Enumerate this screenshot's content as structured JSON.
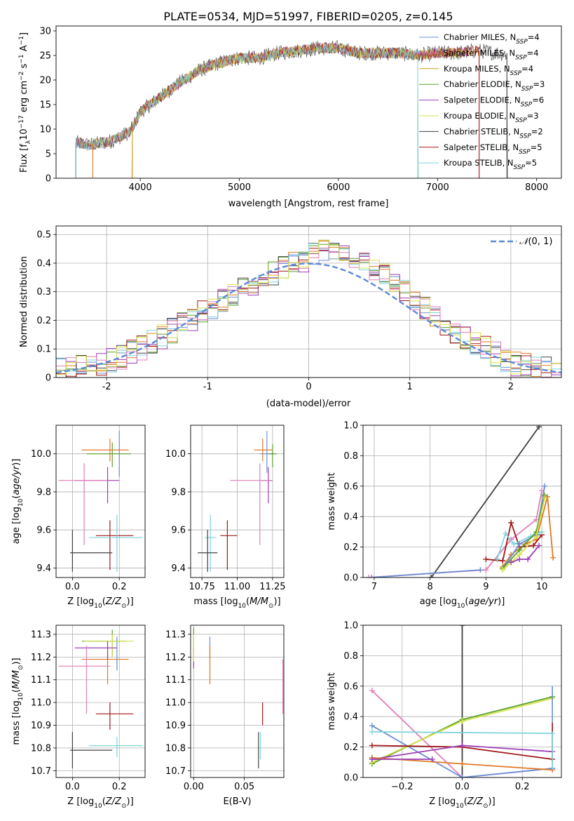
{
  "title": "PLATE=0534, MJD=51997, FIBERID=0205, z=0.145",
  "colors": {
    "c1": "#6b8fd6",
    "c2": "#e07a28",
    "c3": "#d4a017",
    "c4": "#5aa02c",
    "c5": "#9b3fb5",
    "c6": "#d7e04a",
    "c7": "#404040",
    "c8": "#a01818",
    "c9": "#7fd4de",
    "c10": "#e07fb8"
  },
  "chart_data": [
    {
      "id": "spectrum",
      "type": "line",
      "xlabel": "wavelength [Angstrom, rest frame]",
      "ylabel": "Flux [f_λ10^-17 erg cm^-2 s^-1 A^-1]",
      "xlim": [
        3150,
        8250
      ],
      "ylim": [
        0,
        31
      ],
      "xticks": [
        4000,
        5000,
        6000,
        7000,
        8000
      ],
      "yticks": [
        0,
        5,
        10,
        15,
        20,
        25,
        30
      ],
      "grid": false,
      "legend_position": "top-right",
      "legend": [
        {
          "name": "Chabrier MILES, N_SSP=4",
          "color": "c1"
        },
        {
          "name": "Salpeter MILES, N_SSP=4",
          "color": "c10"
        },
        {
          "name": "Kroupa MILES, N_SSP=4",
          "color": "c3"
        },
        {
          "name": "Chabrier ELODIE, N_SSP=3",
          "color": "c4"
        },
        {
          "name": "Salpeter ELODIE, N_SSP=6",
          "color": "c5"
        },
        {
          "name": "Kroupa ELODIE, N_SSP=3",
          "color": "c6"
        },
        {
          "name": "Chabrier STELIB, N_SSP=2",
          "color": "c7"
        },
        {
          "name": "Salpeter STELIB, N_SSP=5",
          "color": "c8"
        },
        {
          "name": "Kroupa STELIB, N_SSP=5",
          "color": "c9"
        }
      ],
      "continuum": {
        "x": [
          3350,
          3500,
          3700,
          3900,
          4000,
          4200,
          4400,
          4600,
          4800,
          5000,
          5200,
          5400,
          5600,
          5800,
          6000,
          6200,
          6400,
          6600,
          6800,
          7000,
          7200,
          7400,
          7600,
          7800
        ],
        "y": [
          7.2,
          6.8,
          7.5,
          9.5,
          13.5,
          16.5,
          19.5,
          22.0,
          23.5,
          24.5,
          24.5,
          25.5,
          26.0,
          26.5,
          26.5,
          25.5,
          25.5,
          25.5,
          25.0,
          25.5,
          25.5,
          26.0,
          25.5,
          25.0
        ]
      },
      "model_ranges": [
        {
          "color": "c2",
          "x": [
            3520,
            7420
          ]
        },
        {
          "color": "c3",
          "x": [
            3920,
            6800
          ]
        },
        {
          "color": "c8",
          "x": [
            3350,
            7420
          ]
        },
        {
          "color": "c7",
          "x": [
            3350,
            7700
          ]
        },
        {
          "color": "c9",
          "x": [
            3350,
            6800
          ]
        }
      ]
    },
    {
      "id": "residual-histogram",
      "type": "histogram",
      "xlabel": "(data-model)/error",
      "ylabel": "Normed distribution",
      "xlim": [
        -2.5,
        2.5
      ],
      "ylim": [
        0,
        0.53
      ],
      "xticks": [
        -2,
        -1,
        0,
        1,
        2
      ],
      "yticks": [
        0.0,
        0.1,
        0.2,
        0.3,
        0.4,
        0.5
      ],
      "grid": true,
      "legend_position": "top-right",
      "legend": [
        {
          "name": "N(0,1)",
          "color": "#5b8ad6",
          "style": "dashed"
        }
      ],
      "bin_width": 0.1,
      "mean_shape": {
        "x": [
          -2.5,
          -2.0,
          -1.5,
          -1.0,
          -0.5,
          0.0,
          0.2,
          0.5,
          1.0,
          1.5,
          2.0,
          2.5
        ],
        "y": [
          0.02,
          0.05,
          0.13,
          0.24,
          0.34,
          0.42,
          0.45,
          0.42,
          0.29,
          0.15,
          0.05,
          0.02
        ]
      },
      "series_colors": [
        "c1",
        "c2",
        "c4",
        "c5",
        "c7",
        "c8",
        "c9",
        "c10",
        "c6"
      ]
    },
    {
      "id": "age-vs-Z",
      "type": "errorbar",
      "xlabel": "Z [log10(Z/Z⊙)]",
      "ylabel": "age [log10(age/yr)]",
      "xlim": [
        -0.07,
        0.31
      ],
      "ylim": [
        9.35,
        10.15
      ],
      "xticks": [
        0.0,
        0.2
      ],
      "xticklabels": [
        "0.0",
        "0.2"
      ],
      "yticks": [
        9.4,
        9.6,
        9.8,
        10.0
      ],
      "yticklabels": [
        "9.4",
        "9.6",
        "9.8",
        "10.0"
      ],
      "grid": true,
      "points": [
        {
          "color": "c1",
          "x": 0.2,
          "xerr": 0.0,
          "y": 10.0,
          "ylo": 9.88,
          "yhi": 10.12
        },
        {
          "color": "c2",
          "x": 0.16,
          "xlo": 0.04,
          "xhi": 0.24,
          "y": 10.02,
          "ylo": 9.96,
          "yhi": 10.08
        },
        {
          "color": "c4",
          "x": 0.17,
          "xlo": 0.06,
          "xhi": 0.25,
          "y": 10.0,
          "ylo": 9.93,
          "yhi": 10.06
        },
        {
          "color": "c5",
          "x": 0.15,
          "xlo": 0.01,
          "xhi": 0.2,
          "y": 9.86,
          "ylo": 9.74,
          "yhi": 9.93
        },
        {
          "color": "c10",
          "x": 0.05,
          "xlo": -0.06,
          "xhi": 0.15,
          "y": 9.86,
          "ylo": 9.52,
          "yhi": 9.95
        },
        {
          "color": "c8",
          "x": 0.16,
          "xlo": 0.1,
          "xhi": 0.26,
          "y": 9.57,
          "ylo": 9.39,
          "yhi": 9.65
        },
        {
          "color": "c9",
          "x": 0.19,
          "xlo": 0.07,
          "xhi": 0.3,
          "y": 9.56,
          "ylo": 9.38,
          "yhi": 9.68
        },
        {
          "color": "c7",
          "x": 0.0,
          "xlo": -0.01,
          "xhi": 0.17,
          "y": 9.48,
          "ylo": 9.38,
          "yhi": 9.6
        }
      ]
    },
    {
      "id": "age-vs-mass",
      "type": "errorbar",
      "xlabel": "mass [log10(M/M⊙)]",
      "ylabel": "",
      "xlim": [
        10.67,
        11.33
      ],
      "ylim": [
        9.35,
        10.15
      ],
      "xticks": [
        10.75,
        11.0,
        11.25
      ],
      "xticklabels": [
        "10.75",
        "11.00",
        "11.25"
      ],
      "yticks": [
        9.4,
        9.6,
        9.8,
        10.0
      ],
      "yticklabels": [
        "9.4",
        "9.6",
        "9.8",
        "10.0"
      ],
      "grid": true,
      "points": [
        {
          "color": "c1",
          "x": 11.21,
          "xlo": 11.16,
          "xhi": 11.26,
          "y": 10.0,
          "ylo": 9.9,
          "yhi": 10.12
        },
        {
          "color": "c2",
          "x": 11.18,
          "xlo": 11.12,
          "xhi": 11.25,
          "y": 10.02,
          "ylo": 9.96,
          "yhi": 10.08
        },
        {
          "color": "c4",
          "x": 11.25,
          "xlo": 11.22,
          "xhi": 11.28,
          "y": 10.0,
          "ylo": 9.93,
          "yhi": 10.05
        },
        {
          "color": "c5",
          "x": 11.22,
          "xlo": 11.17,
          "xhi": 11.25,
          "y": 9.86,
          "ylo": 9.74,
          "yhi": 9.93
        },
        {
          "color": "c10",
          "x": 11.16,
          "xlo": 10.95,
          "xhi": 11.25,
          "y": 9.86,
          "ylo": 9.52,
          "yhi": 9.95
        },
        {
          "color": "c8",
          "x": 10.93,
          "xlo": 10.88,
          "xhi": 11.0,
          "y": 9.57,
          "ylo": 9.39,
          "yhi": 9.65
        },
        {
          "color": "c9",
          "x": 10.81,
          "xlo": 10.77,
          "xhi": 10.85,
          "y": 9.56,
          "ylo": 9.38,
          "yhi": 9.68
        },
        {
          "color": "c7",
          "x": 10.79,
          "xlo": 10.72,
          "xhi": 10.86,
          "y": 9.48,
          "ylo": 9.38,
          "yhi": 9.6
        }
      ]
    },
    {
      "id": "weight-vs-age",
      "type": "line",
      "xlabel": "age [log10(age/yr)]",
      "ylabel": "mass weight",
      "xlim": [
        6.8,
        10.35
      ],
      "ylim": [
        0.0,
        1.0
      ],
      "xticks": [
        7,
        8,
        9,
        10
      ],
      "xticklabels": [
        "7",
        "8",
        "9",
        "10"
      ],
      "yticks": [
        0.0,
        0.2,
        0.4,
        0.6,
        0.8,
        1.0
      ],
      "yticklabels": [
        "0.0",
        "0.2",
        "0.4",
        "0.6",
        "0.8",
        "1.0"
      ],
      "grid": true,
      "series": [
        {
          "color": "c7",
          "x": [
            8.02,
            9.95
          ],
          "y": [
            0.0,
            0.99
          ]
        },
        {
          "color": "c10",
          "x": [
            6.9,
            9.0,
            9.45,
            9.9,
            10.0
          ],
          "y": [
            0.0,
            0.05,
            0.25,
            0.38,
            0.57
          ]
        },
        {
          "color": "c2",
          "x": [
            9.3,
            9.45,
            9.7,
            9.9,
            10.1,
            10.2
          ],
          "y": [
            0.07,
            0.15,
            0.22,
            0.25,
            0.53,
            0.13
          ]
        },
        {
          "color": "c8",
          "x": [
            9.0,
            9.3,
            9.45,
            9.6,
            9.85,
            10.0
          ],
          "y": [
            0.12,
            0.11,
            0.36,
            0.2,
            0.21,
            0.28
          ]
        },
        {
          "color": "c9",
          "x": [
            9.2,
            9.35,
            9.5,
            9.8,
            10.0
          ],
          "y": [
            0.12,
            0.29,
            0.22,
            0.27,
            0.3
          ]
        },
        {
          "color": "c1",
          "x": [
            9.3,
            9.6,
            9.9,
            10.05
          ],
          "y": [
            0.06,
            0.22,
            0.28,
            0.6
          ]
        },
        {
          "color": "c4",
          "x": [
            9.3,
            9.6,
            9.9,
            10.05
          ],
          "y": [
            0.06,
            0.18,
            0.3,
            0.54
          ]
        },
        {
          "color": "c6",
          "x": [
            9.3,
            9.6,
            9.9,
            10.05
          ],
          "y": [
            0.05,
            0.15,
            0.27,
            0.52
          ]
        },
        {
          "color": "c5",
          "x": [
            9.45,
            9.6,
            9.75,
            9.95
          ],
          "y": [
            0.1,
            0.12,
            0.12,
            0.21
          ]
        },
        {
          "color": "c1",
          "x": [
            6.95,
            8.9
          ],
          "y": [
            0.0,
            0.05
          ]
        }
      ]
    },
    {
      "id": "mass-vs-Z",
      "type": "errorbar",
      "xlabel": "Z [log10(Z/Z⊙)]",
      "ylabel": "mass [log10(M/M⊙)]",
      "xlim": [
        -0.07,
        0.31
      ],
      "ylim": [
        10.67,
        11.34
      ],
      "xticks": [
        0.0,
        0.2
      ],
      "xticklabels": [
        "0.0",
        "0.2"
      ],
      "yticks": [
        10.7,
        10.8,
        10.9,
        11.0,
        11.1,
        11.2,
        11.3
      ],
      "yticklabels": [
        "10.7",
        "10.8",
        "10.9",
        "11.0",
        "11.1",
        "11.2",
        "11.3"
      ],
      "grid": true,
      "points": [
        {
          "color": "c1",
          "x": 0.19,
          "xlo": 0.19,
          "xhi": 0.19,
          "y": 11.21,
          "ylo": 11.14,
          "yhi": 11.29
        },
        {
          "color": "c2",
          "x": 0.15,
          "xlo": 0.04,
          "xhi": 0.24,
          "y": 11.19,
          "ylo": 11.08,
          "yhi": 11.25
        },
        {
          "color": "c4",
          "x": 0.17,
          "xlo": 0.04,
          "xhi": 0.23,
          "y": 11.27,
          "ylo": 11.2,
          "yhi": 11.32
        },
        {
          "color": "c6",
          "x": 0.17,
          "xlo": 0.05,
          "xhi": 0.26,
          "y": 11.27,
          "ylo": 11.2,
          "yhi": 11.3
        },
        {
          "color": "c5",
          "x": 0.15,
          "xlo": 0.01,
          "xhi": 0.19,
          "y": 11.24,
          "ylo": 11.19,
          "yhi": 11.27
        },
        {
          "color": "c10",
          "x": 0.06,
          "xlo": -0.06,
          "xhi": 0.16,
          "y": 11.16,
          "ylo": 10.95,
          "yhi": 11.25
        },
        {
          "color": "c8",
          "x": 0.16,
          "xlo": 0.1,
          "xhi": 0.26,
          "y": 10.95,
          "ylo": 10.88,
          "yhi": 11.0
        },
        {
          "color": "c9",
          "x": 0.19,
          "xlo": 0.07,
          "xhi": 0.3,
          "y": 10.81,
          "ylo": 10.76,
          "yhi": 10.85
        },
        {
          "color": "c7",
          "x": 0.0,
          "xlo": -0.01,
          "xhi": 0.17,
          "y": 10.79,
          "ylo": 10.71,
          "yhi": 10.87
        }
      ]
    },
    {
      "id": "mass-vs-EBV",
      "type": "errorbar",
      "xlabel": "E(B-V)",
      "ylabel": "",
      "xlim": [
        -0.003,
        0.089
      ],
      "ylim": [
        10.67,
        11.34
      ],
      "xticks": [
        0.0,
        0.05
      ],
      "xticklabels": [
        "0.00",
        "0.05"
      ],
      "yticks": [
        10.7,
        10.8,
        10.9,
        11.0,
        11.1,
        11.2,
        11.3
      ],
      "yticklabels": [
        "10.7",
        "10.8",
        "10.9",
        "11.0",
        "11.1",
        "11.2",
        "11.3"
      ],
      "grid": true,
      "points": [
        {
          "color": "c4",
          "x": 0.0,
          "xlo": 0.0,
          "xhi": 0.0,
          "y": 11.27,
          "ylo": 11.22,
          "yhi": 11.33
        },
        {
          "color": "c5",
          "x": 0.0,
          "xlo": 0.0,
          "xhi": 0.0,
          "y": 11.2,
          "ylo": 11.15,
          "yhi": 11.24
        },
        {
          "color": "c6",
          "x": 0.0,
          "xlo": 0.0,
          "xhi": 0.0,
          "y": 11.25,
          "ylo": 11.18,
          "yhi": 11.3
        },
        {
          "color": "c1",
          "x": 0.016,
          "xlo": 0.016,
          "xhi": 0.016,
          "y": 11.24,
          "ylo": 11.18,
          "yhi": 11.29
        },
        {
          "color": "c2",
          "x": 0.016,
          "xlo": 0.016,
          "xhi": 0.016,
          "y": 11.16,
          "ylo": 11.08,
          "yhi": 11.25
        },
        {
          "color": "c10",
          "x": 0.088,
          "xlo": 0.088,
          "xhi": 0.088,
          "y": 11.08,
          "ylo": 10.95,
          "yhi": 11.19
        },
        {
          "color": "c8",
          "x": 0.068,
          "xlo": 0.068,
          "xhi": 0.068,
          "y": 10.95,
          "ylo": 10.9,
          "yhi": 11.0
        },
        {
          "color": "c7",
          "x": 0.064,
          "xlo": 0.064,
          "xhi": 0.064,
          "y": 10.79,
          "ylo": 10.71,
          "yhi": 10.87
        },
        {
          "color": "c9",
          "x": 0.066,
          "xlo": 0.066,
          "xhi": 0.066,
          "y": 10.81,
          "ylo": 10.75,
          "yhi": 10.87
        }
      ]
    },
    {
      "id": "weight-vs-Z",
      "type": "line",
      "xlabel": "Z [log10(Z/Z⊙)]",
      "ylabel": "mass weight",
      "xlim": [
        -0.33,
        0.33
      ],
      "ylim": [
        0.0,
        1.0
      ],
      "xticks": [
        -0.2,
        0.0,
        0.2
      ],
      "xticklabels": [
        "−0.2",
        "0.0",
        "0.2"
      ],
      "yticks": [
        0.0,
        0.2,
        0.4,
        0.6,
        0.8,
        1.0
      ],
      "yticklabels": [
        "0.0",
        "0.2",
        "0.4",
        "0.6",
        "0.8",
        "1.0"
      ],
      "grid": true,
      "series": [
        {
          "color": "c7",
          "x": [
            0.0,
            0.0
          ],
          "y": [
            0.0,
            1.0
          ]
        },
        {
          "color": "c10",
          "x": [
            -0.3,
            0.0,
            0.3
          ],
          "y": [
            0.57,
            0.0,
            0.06
          ]
        },
        {
          "color": "c1",
          "x": [
            -0.3,
            0.0,
            0.3
          ],
          "y": [
            0.34,
            0.0,
            0.06
          ]
        },
        {
          "color": "c4",
          "x": [
            -0.3,
            0.0,
            0.3
          ],
          "y": [
            0.09,
            0.38,
            0.53
          ]
        },
        {
          "color": "c6",
          "x": [
            -0.3,
            0.0,
            0.3
          ],
          "y": [
            0.1,
            0.37,
            0.52
          ]
        },
        {
          "color": "c9",
          "x": [
            -0.3,
            0.3
          ],
          "y": [
            0.3,
            0.29
          ]
        },
        {
          "color": "c8",
          "x": [
            -0.3,
            0.0,
            0.3
          ],
          "y": [
            0.21,
            0.2,
            0.12
          ]
        },
        {
          "color": "c5",
          "x": [
            -0.3,
            0.0,
            0.3
          ],
          "y": [
            0.12,
            0.21,
            0.17
          ]
        },
        {
          "color": "c2",
          "x": [
            -0.3,
            0.0,
            0.3
          ],
          "y": [
            0.13,
            0.09,
            0.05
          ]
        },
        {
          "color": "c5",
          "x": [
            -0.3,
            -0.1
          ],
          "y": [
            0.12,
            0.12
          ]
        }
      ],
      "vertical_markers": [
        {
          "color": "c1",
          "x": 0.3,
          "ylo": 0.05,
          "yhi": 0.6
        },
        {
          "color": "c8",
          "x": 0.3,
          "ylo": 0.1,
          "yhi": 0.36
        },
        {
          "color": "c9",
          "x": 0.3,
          "ylo": 0.05,
          "yhi": 0.3
        }
      ]
    }
  ]
}
